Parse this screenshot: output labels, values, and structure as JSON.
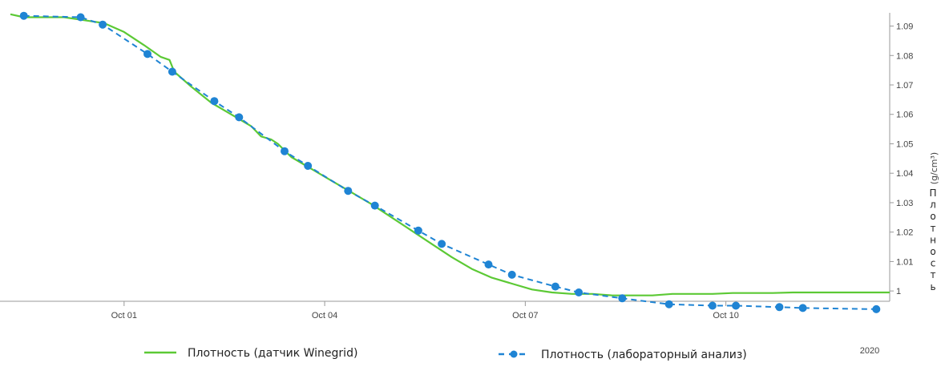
{
  "chart_data": {
    "type": "line",
    "xlabel": "",
    "ylabel": "Плотность",
    "ylabel_unit": "(g/cm³)",
    "year_label": "2020",
    "x_ticks": [
      "Oct 01",
      "Oct 04",
      "Oct 07",
      "Oct 10"
    ],
    "x_ticks_days": [
      0,
      3,
      6,
      9
    ],
    "xlim_days": [
      -1.7,
      11.45
    ],
    "y_ticks": [
      "1",
      "1.01",
      "1.02",
      "1.03",
      "1.04",
      "1.05",
      "1.06",
      "1.07",
      "1.08",
      "1.09"
    ],
    "y_ticks_values": [
      1.0,
      1.01,
      1.02,
      1.03,
      1.04,
      1.05,
      1.06,
      1.07,
      1.08,
      1.09
    ],
    "ylim": [
      0.9965,
      1.0945
    ],
    "y_axis_position": "right",
    "grid": false,
    "legend_position": "bottom",
    "series": [
      {
        "name": "Плотность (датчик Winegrid)",
        "style": "solid",
        "color": "#5cc935",
        "x_days": [
          -1.7,
          -1.5,
          -1.2,
          -0.9,
          -0.6,
          -0.3,
          0.0,
          0.3,
          0.55,
          0.68,
          0.75,
          1.0,
          1.3,
          1.6,
          1.9,
          2.05,
          2.2,
          2.3,
          2.5,
          2.8,
          3.1,
          3.4,
          3.7,
          4.0,
          4.3,
          4.6,
          4.9,
          5.2,
          5.5,
          5.8,
          6.1,
          6.4,
          6.7,
          7.0,
          7.3,
          7.6,
          7.9,
          8.2,
          8.5,
          8.8,
          9.1,
          9.4,
          9.7,
          10.0,
          10.3,
          10.6,
          10.9,
          11.2,
          11.45
        ],
        "values": [
          1.094,
          1.093,
          1.093,
          1.093,
          1.092,
          1.091,
          1.088,
          1.0835,
          1.0795,
          1.0785,
          1.0745,
          1.0695,
          1.064,
          1.06,
          1.056,
          1.0525,
          1.0515,
          1.05,
          1.0455,
          1.0415,
          1.0375,
          1.0335,
          1.0295,
          1.025,
          1.0205,
          1.016,
          1.0115,
          1.0075,
          1.0045,
          1.0025,
          1.0005,
          0.9995,
          0.999,
          0.999,
          0.9985,
          0.9985,
          0.9985,
          0.999,
          0.999,
          0.999,
          0.9993,
          0.9993,
          0.9993,
          0.9995,
          0.9995,
          0.9995,
          0.9995,
          0.9995,
          0.9995
        ]
      },
      {
        "name": "Плотность (лабораторный анализ)",
        "style": "dashed-markers",
        "color": "#1f84d4",
        "x_days": [
          -1.5,
          -0.65,
          -0.32,
          0.35,
          0.72,
          1.35,
          1.72,
          2.4,
          2.75,
          3.35,
          3.75,
          4.4,
          4.75,
          5.45,
          5.8,
          6.45,
          6.8,
          7.45,
          8.15,
          8.8,
          9.15,
          9.8,
          10.15,
          11.25
        ],
        "values": [
          1.0935,
          1.093,
          1.0905,
          1.0805,
          1.0745,
          1.0645,
          1.059,
          1.0475,
          1.0425,
          1.034,
          1.029,
          1.0205,
          1.016,
          1.009,
          1.0055,
          1.0015,
          0.9995,
          0.9975,
          0.9955,
          0.995,
          0.995,
          0.9945,
          0.9942,
          0.9938
        ]
      }
    ]
  }
}
